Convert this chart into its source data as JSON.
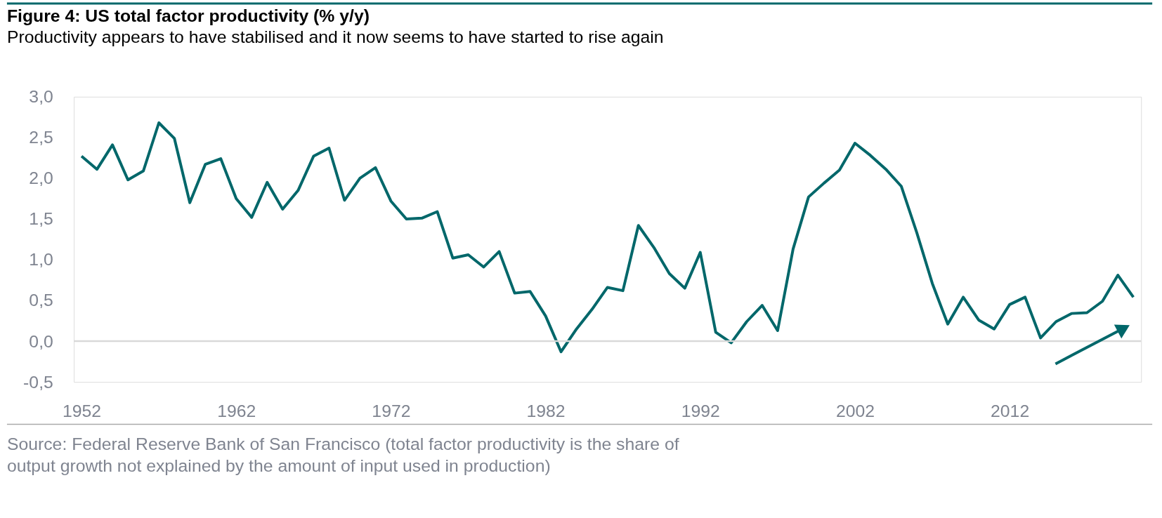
{
  "chart_data": {
    "type": "line",
    "title": "Figure 4: US total factor productivity (% y/y)",
    "subtitle": "Productivity appears to have stabilised and it now seems to have started to rise again",
    "x": [
      1952,
      1953,
      1954,
      1955,
      1956,
      1957,
      1958,
      1959,
      1960,
      1961,
      1962,
      1963,
      1964,
      1965,
      1966,
      1967,
      1968,
      1969,
      1970,
      1971,
      1972,
      1973,
      1974,
      1975,
      1976,
      1977,
      1978,
      1979,
      1980,
      1981,
      1982,
      1983,
      1984,
      1985,
      1986,
      1987,
      1988,
      1989,
      1990,
      1991,
      1992,
      1993,
      1994,
      1995,
      1996,
      1997,
      1998,
      1999,
      2000,
      2001,
      2002,
      2003,
      2004,
      2005,
      2006,
      2007,
      2008,
      2009,
      2010,
      2011,
      2012,
      2013,
      2014,
      2015,
      2016,
      2017,
      2018,
      2019,
      2020
    ],
    "series": [
      {
        "color": "#00676a",
        "values": [
          2.27,
          2.11,
          2.41,
          1.98,
          2.09,
          2.68,
          2.49,
          1.7,
          2.17,
          2.24,
          1.75,
          1.52,
          1.95,
          1.62,
          1.85,
          2.27,
          2.37,
          1.73,
          2.0,
          2.13,
          1.72,
          1.5,
          1.51,
          1.59,
          1.02,
          1.06,
          0.91,
          1.1,
          0.59,
          0.61,
          0.31,
          -0.13,
          0.15,
          0.39,
          0.66,
          0.62,
          1.42,
          1.15,
          0.83,
          0.65,
          1.09,
          0.11,
          -0.02,
          0.24,
          0.44,
          0.13,
          1.13,
          1.77,
          1.94,
          2.1,
          2.43,
          2.28,
          2.11,
          1.9,
          1.33,
          0.71,
          0.21,
          0.54,
          0.26,
          0.15,
          0.45,
          0.54,
          0.04,
          0.24,
          0.34,
          0.35,
          0.49,
          0.81,
          0.54
        ]
      }
    ],
    "xlim": [
      1951.5,
      2020.5
    ],
    "xticks": [
      1952,
      1962,
      1972,
      1982,
      1992,
      2002,
      2012
    ],
    "ylim": [
      -0.5,
      3.0
    ],
    "yticks": [
      {
        "value": -0.5,
        "label": "-0,5"
      },
      {
        "value": 0,
        "label": "0,0"
      },
      {
        "value": 0.5,
        "label": "0,5"
      },
      {
        "value": 1.0,
        "label": "1,0"
      },
      {
        "value": 1.5,
        "label": "1,5"
      },
      {
        "value": 2.0,
        "label": "2,0"
      },
      {
        "value": 2.5,
        "label": "2,5"
      },
      {
        "value": 3.0,
        "label": "3,0"
      }
    ],
    "ref_lines": [
      {
        "axis": "y",
        "value": 0,
        "color": "#d9d9d9"
      }
    ],
    "grid": false,
    "marker": "none",
    "line_style": "solid",
    "annotations": [
      "Source: Federal Reserve Bank of San Francisco (total factor productivity is the share of\noutput growth not explained by the amount of input used in production)"
    ]
  }
}
